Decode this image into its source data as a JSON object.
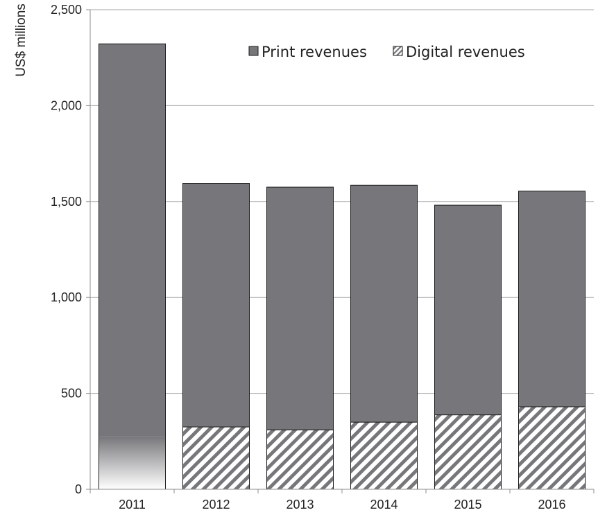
{
  "chart_data": {
    "type": "bar",
    "stacked": true,
    "categories": [
      "2011",
      "2012",
      "2013",
      "2014",
      "2015",
      "2016"
    ],
    "series": [
      {
        "name": "Digital revenues",
        "values": [
          0,
          325,
          310,
          350,
          388,
          430
        ],
        "pattern": "diagonal-hatch"
      },
      {
        "name": "Print revenues",
        "values": [
          2322,
          1270,
          1265,
          1235,
          1093,
          1124
        ],
        "pattern": "solid"
      }
    ],
    "totals": [
      2322,
      1595,
      1575,
      1585,
      1481,
      1554
    ],
    "ylabel": "US$ millions",
    "xlabel": "",
    "ylim": [
      0,
      2500
    ],
    "yticks": [
      0,
      500,
      1000,
      1500,
      2000,
      2500
    ],
    "ytick_labels": [
      "0",
      "500",
      "1,000",
      "1,500",
      "2,000",
      "2,500"
    ],
    "grid": true,
    "legend_position": "top-right",
    "note_2011": "2011 bar shows a fading gradient at its base instead of hatching",
    "colors": {
      "print": "#77777b",
      "digital_hatch": "#77777b",
      "grid": "#a6a6a6",
      "axis": "#8c8c8c",
      "bar_outline": "#1a1a1a"
    }
  }
}
